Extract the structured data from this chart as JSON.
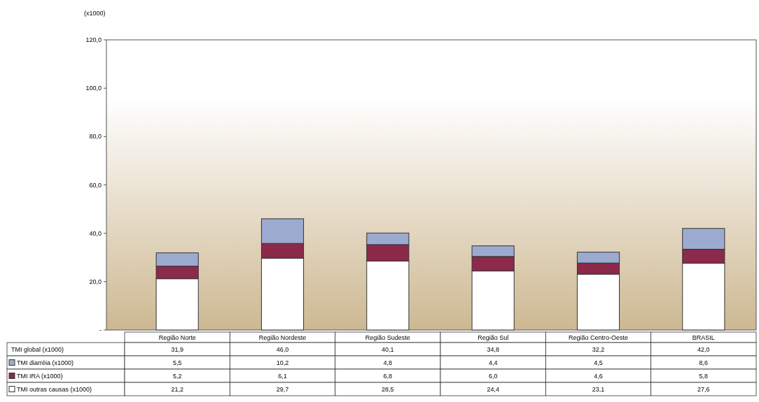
{
  "chart_data": {
    "type": "bar",
    "stacked": true,
    "ylabel": "(x1000)",
    "categories": [
      "Região Norte",
      "Região Nordeste",
      "Região Sudeste",
      "Região Sul",
      "Região Centro-Oeste",
      "BRASIL"
    ],
    "series": [
      {
        "name": "TMI outras causas (x1000)",
        "color": "#ffffff",
        "values": [
          21.2,
          29.7,
          28.5,
          24.4,
          23.1,
          27.6
        ],
        "value_labels": [
          "21,2",
          "29,7",
          "28,5",
          "24,4",
          "23,1",
          "27,6"
        ]
      },
      {
        "name": "TMI IRA (x1000)",
        "color": "#8b2a4a",
        "values": [
          5.2,
          6.1,
          6.8,
          6.0,
          4.6,
          5.8
        ],
        "value_labels": [
          "5,2",
          "6,1",
          "6,8",
          "6,0",
          "4,6",
          "5,8"
        ]
      },
      {
        "name": "TMI diarréia (x1000)",
        "color": "#9daad0",
        "values": [
          5.5,
          10.2,
          4.8,
          4.4,
          4.5,
          8.6
        ],
        "value_labels": [
          "5,5",
          "10,2",
          "4,8",
          "4,4",
          "4,5",
          "8,6"
        ]
      }
    ],
    "totals": [
      "31,9",
      "46,0",
      "40,1",
      "34,8",
      "32,2",
      "42,0"
    ],
    "annotations": [
      "TMI global (x1000)"
    ],
    "ylim": [
      0,
      120
    ],
    "yticks": [
      {
        "value": 0,
        "label": "-"
      },
      {
        "value": 20,
        "label": "20,0"
      },
      {
        "value": 40,
        "label": "40,0"
      },
      {
        "value": 60,
        "label": "60,0"
      },
      {
        "value": 80,
        "label": "80,0"
      },
      {
        "value": 100,
        "label": "100,0"
      },
      {
        "value": 120,
        "label": "120,0"
      }
    ],
    "legend": "bottom"
  }
}
